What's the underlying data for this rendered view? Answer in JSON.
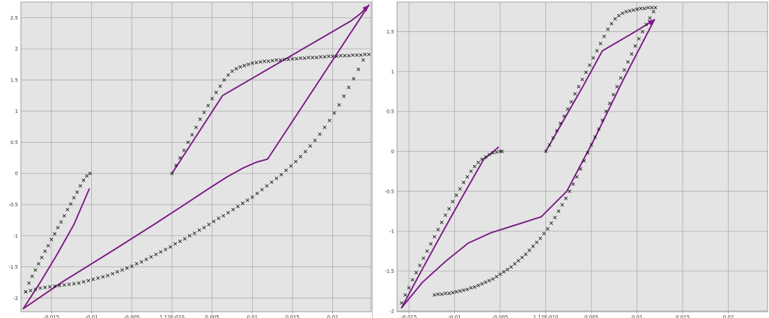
{
  "colors": {
    "plot_background": "#e4e4e4",
    "grid": "#a9a9a9",
    "frame": "#9a9a9a",
    "simulation_line": "#7b1a86",
    "measurement_marker": "#1a1a1a"
  },
  "chart_data": [
    {
      "type": "scatter",
      "title": "",
      "xlabel": "",
      "ylabel": "",
      "xlim": [
        -0.0188,
        0.0248
      ],
      "ylim": [
        -2.22,
        2.75
      ],
      "grid": true,
      "xticks": [
        -0.015,
        -0.01,
        -0.005,
        0,
        0.005,
        0.01,
        0.015,
        0.02
      ],
      "xtick_labels": [
        "-0.015",
        "-0.01",
        "-0.005",
        "1.12E-010",
        "0.005",
        "0.01",
        "0.015",
        "0.02"
      ],
      "yticks": [
        2.5,
        2,
        1.5,
        1,
        0.5,
        0,
        -0.5,
        -1,
        -1.5,
        -2
      ],
      "ytick_labels": [
        "2.5",
        "2",
        "1.5",
        "1",
        "0.5",
        "0",
        "-0.5",
        "-1",
        "-1.5",
        "-2"
      ],
      "series": [
        {
          "name": "",
          "style": "line",
          "arrowhead_at_end": true,
          "x": [
            0.0,
            0.0063,
            0.0103,
            0.0143,
            0.0183,
            0.0203,
            0.0223,
            0.0235,
            0.0245
          ],
          "y": [
            0.0,
            1.25,
            1.55,
            1.85,
            2.15,
            2.3,
            2.45,
            2.57,
            2.7
          ]
        },
        {
          "name": "",
          "style": "line",
          "arrowhead_at_end": false,
          "x": [
            0.0245,
            0.0119,
            0.0105,
            0.0089,
            0.0068,
            0.0045,
            0.0018,
            -0.002,
            -0.0075,
            -0.0135,
            -0.0185
          ],
          "y": [
            2.7,
            0.23,
            0.18,
            0.09,
            -0.06,
            -0.25,
            -0.48,
            -0.8,
            -1.25,
            -1.73,
            -2.17
          ]
        },
        {
          "name": "",
          "style": "line",
          "arrowhead_at_end": false,
          "x": [
            -0.0185,
            -0.0164,
            -0.0143,
            -0.0122,
            -0.0103
          ],
          "y": [
            -2.17,
            -1.75,
            -1.3,
            -0.82,
            -0.25
          ]
        },
        {
          "name": "",
          "style": "marker",
          "x": [
            0.0,
            0.0005,
            0.001,
            0.0015,
            0.002,
            0.0025,
            0.003,
            0.0035,
            0.004,
            0.0045,
            0.005,
            0.0055,
            0.006,
            0.0065,
            0.007,
            0.0075,
            0.008,
            0.0085,
            0.009,
            0.0095,
            0.01,
            0.0105,
            0.011,
            0.0115,
            0.012,
            0.0125,
            0.013,
            0.0135,
            0.014,
            0.0145,
            0.015,
            0.0155,
            0.016,
            0.0165,
            0.017,
            0.0175,
            0.018,
            0.0185,
            0.019,
            0.0195,
            0.02,
            0.0205,
            0.021,
            0.0215,
            0.022,
            0.0225,
            0.023,
            0.0235,
            0.024,
            0.0245
          ],
          "y": [
            0.0,
            0.13,
            0.25,
            0.37,
            0.5,
            0.62,
            0.74,
            0.87,
            0.98,
            1.09,
            1.2,
            1.3,
            1.4,
            1.5,
            1.58,
            1.64,
            1.68,
            1.71,
            1.73,
            1.75,
            1.77,
            1.78,
            1.79,
            1.8,
            1.8,
            1.81,
            1.82,
            1.82,
            1.83,
            1.83,
            1.84,
            1.84,
            1.85,
            1.85,
            1.86,
            1.86,
            1.86,
            1.87,
            1.87,
            1.88,
            1.88,
            1.88,
            1.89,
            1.89,
            1.89,
            1.9,
            1.9,
            1.9,
            1.91,
            1.91
          ]
        },
        {
          "name": "",
          "style": "marker",
          "x": [
            0.0238,
            0.0232,
            0.0226,
            0.022,
            0.0214,
            0.0208,
            0.0202,
            0.0196,
            0.019,
            0.0184,
            0.0178,
            0.0172,
            0.0166,
            0.016,
            0.0154,
            0.0148,
            0.0142,
            0.0136,
            0.013,
            0.0124,
            0.0118,
            0.0112,
            0.0106,
            0.01,
            0.0094,
            0.0088,
            0.0082,
            0.0076,
            0.007,
            0.0064,
            0.0058,
            0.0052,
            0.0046,
            0.004,
            0.0034,
            0.0028,
            0.0022,
            0.0016,
            0.001,
            0.0004,
            -0.0002,
            -0.0008,
            -0.0014,
            -0.002,
            -0.0026,
            -0.0032,
            -0.0038,
            -0.0044,
            -0.005,
            -0.0056,
            -0.0062,
            -0.0068,
            -0.0074,
            -0.008,
            -0.0086,
            -0.0092,
            -0.0098,
            -0.0104,
            -0.011,
            -0.0116,
            -0.0122,
            -0.0128,
            -0.0134,
            -0.014,
            -0.0146,
            -0.0152,
            -0.0158,
            -0.0164,
            -0.017,
            -0.0176,
            -0.0182
          ],
          "y": [
            1.82,
            1.67,
            1.52,
            1.38,
            1.24,
            1.1,
            0.97,
            0.85,
            0.74,
            0.63,
            0.53,
            0.44,
            0.35,
            0.27,
            0.19,
            0.12,
            0.05,
            -0.02,
            -0.08,
            -0.14,
            -0.2,
            -0.26,
            -0.32,
            -0.38,
            -0.43,
            -0.48,
            -0.53,
            -0.58,
            -0.63,
            -0.68,
            -0.72,
            -0.77,
            -0.82,
            -0.87,
            -0.91,
            -0.96,
            -1.0,
            -1.05,
            -1.09,
            -1.13,
            -1.18,
            -1.22,
            -1.26,
            -1.3,
            -1.34,
            -1.38,
            -1.42,
            -1.45,
            -1.49,
            -1.52,
            -1.55,
            -1.58,
            -1.61,
            -1.64,
            -1.66,
            -1.68,
            -1.7,
            -1.72,
            -1.74,
            -1.76,
            -1.77,
            -1.78,
            -1.79,
            -1.8,
            -1.81,
            -1.82,
            -1.83,
            -1.84,
            -1.86,
            -1.88,
            -1.9
          ]
        },
        {
          "name": "",
          "style": "marker",
          "x": [
            -0.0182,
            -0.0178,
            -0.0174,
            -0.017,
            -0.0166,
            -0.0162,
            -0.0158,
            -0.0154,
            -0.015,
            -0.0146,
            -0.0142,
            -0.0138,
            -0.0134,
            -0.013,
            -0.0126,
            -0.0122,
            -0.0118,
            -0.0114,
            -0.011,
            -0.0106,
            -0.0102
          ],
          "y": [
            -1.9,
            -1.76,
            -1.65,
            -1.55,
            -1.45,
            -1.35,
            -1.25,
            -1.16,
            -1.06,
            -0.97,
            -0.87,
            -0.78,
            -0.68,
            -0.58,
            -0.49,
            -0.39,
            -0.3,
            -0.2,
            -0.11,
            -0.04,
            0.0
          ]
        }
      ]
    },
    {
      "type": "scatter",
      "title": "",
      "xlabel": "",
      "ylabel": "",
      "xlim": [
        -0.0163,
        0.0243
      ],
      "ylim": [
        -2.01,
        1.87
      ],
      "grid": true,
      "xticks": [
        -0.015,
        -0.01,
        -0.005,
        0,
        0.005,
        0.01,
        0.015,
        0.02
      ],
      "xtick_labels": [
        "-0.015",
        "-0.01",
        "-0.005",
        "1.12E-010",
        "0.005",
        "0.01",
        "0.015",
        "0.02"
      ],
      "yticks": [
        1.5,
        1,
        0.5,
        0,
        -0.5,
        -1,
        -1.5,
        -2
      ],
      "ytick_labels": [
        "1.5",
        "1",
        "0.5",
        "0",
        "-0.5",
        "-1",
        "-1.5",
        "-2"
      ],
      "series": [
        {
          "name": "",
          "style": "line",
          "arrowhead_at_end": true,
          "x": [
            0.0,
            0.002,
            0.004,
            0.0062,
            0.008,
            0.0095,
            0.0108,
            0.0119
          ],
          "y": [
            0.0,
            0.4,
            0.8,
            1.26,
            1.38,
            1.48,
            1.57,
            1.65
          ]
        },
        {
          "name": "",
          "style": "line",
          "arrowhead_at_end": false,
          "x": [
            0.0119,
            0.0085,
            0.0053,
            0.0023,
            -0.0005,
            -0.0035,
            -0.006,
            -0.0085,
            -0.011,
            -0.0135,
            -0.0158
          ],
          "y": [
            1.65,
            0.9,
            0.15,
            -0.5,
            -0.82,
            -0.93,
            -1.02,
            -1.15,
            -1.38,
            -1.64,
            -1.96
          ]
        },
        {
          "name": "",
          "style": "line",
          "arrowhead_at_end": false,
          "x": [
            -0.0158,
            -0.0135,
            -0.0112,
            -0.009,
            -0.0068,
            -0.0052
          ],
          "y": [
            -1.96,
            -1.47,
            -0.99,
            -0.54,
            -0.1,
            0.05
          ]
        },
        {
          "name": "",
          "style": "marker",
          "x": [
            0.0,
            0.0004,
            0.0008,
            0.0012,
            0.0016,
            0.002,
            0.0024,
            0.0028,
            0.0032,
            0.0036,
            0.004,
            0.0044,
            0.0048,
            0.0052,
            0.0056,
            0.006,
            0.0064,
            0.0068,
            0.0072,
            0.0076,
            0.008,
            0.0084,
            0.0088,
            0.0092,
            0.0096,
            0.01,
            0.0104,
            0.0108,
            0.0112,
            0.0116,
            0.012
          ],
          "y": [
            0.0,
            0.08,
            0.17,
            0.26,
            0.35,
            0.44,
            0.53,
            0.62,
            0.72,
            0.81,
            0.9,
            0.99,
            1.08,
            1.17,
            1.26,
            1.35,
            1.44,
            1.53,
            1.6,
            1.66,
            1.7,
            1.73,
            1.75,
            1.76,
            1.77,
            1.78,
            1.79,
            1.79,
            1.8,
            1.8,
            1.8
          ]
        },
        {
          "name": "",
          "style": "marker",
          "x": [
            0.0118,
            0.0114,
            0.011,
            0.0106,
            0.0102,
            0.0098,
            0.0094,
            0.009,
            0.0086,
            0.0082,
            0.0078,
            0.0074,
            0.007,
            0.0066,
            0.0062,
            0.0058,
            0.0054,
            0.005,
            0.0046,
            0.0042,
            0.0038,
            0.0034,
            0.003,
            0.0026,
            0.0022,
            0.0018,
            0.0014,
            0.001,
            0.0006,
            0.0002,
            -0.0002,
            -0.0006,
            -0.001,
            -0.0014,
            -0.0018,
            -0.0022,
            -0.0026,
            -0.003,
            -0.0034,
            -0.0038,
            -0.0042,
            -0.0046,
            -0.005,
            -0.0054,
            -0.0058,
            -0.0062,
            -0.0066,
            -0.007,
            -0.0074,
            -0.0078,
            -0.0082,
            -0.0086,
            -0.009,
            -0.0094,
            -0.0098,
            -0.0102,
            -0.0106,
            -0.011,
            -0.0114,
            -0.0118,
            -0.0122
          ],
          "y": [
            1.75,
            1.67,
            1.59,
            1.5,
            1.41,
            1.32,
            1.22,
            1.12,
            1.02,
            0.92,
            0.81,
            0.71,
            0.6,
            0.5,
            0.39,
            0.28,
            0.18,
            0.08,
            -0.02,
            -0.12,
            -0.22,
            -0.32,
            -0.41,
            -0.5,
            -0.59,
            -0.67,
            -0.75,
            -0.83,
            -0.9,
            -0.97,
            -1.03,
            -1.09,
            -1.14,
            -1.19,
            -1.24,
            -1.29,
            -1.33,
            -1.37,
            -1.41,
            -1.45,
            -1.48,
            -1.51,
            -1.54,
            -1.57,
            -1.6,
            -1.62,
            -1.64,
            -1.66,
            -1.68,
            -1.7,
            -1.71,
            -1.73,
            -1.74,
            -1.75,
            -1.76,
            -1.77,
            -1.78,
            -1.78,
            -1.79,
            -1.79,
            -1.8
          ]
        },
        {
          "name": "",
          "style": "marker",
          "x": [
            -0.0158,
            -0.0154,
            -0.015,
            -0.0146,
            -0.0142,
            -0.0138,
            -0.0134,
            -0.013,
            -0.0126,
            -0.0122,
            -0.0118,
            -0.0114,
            -0.011,
            -0.0106,
            -0.0102,
            -0.0098,
            -0.0094,
            -0.009,
            -0.0086,
            -0.0082,
            -0.0078,
            -0.0074,
            -0.007,
            -0.0066,
            -0.0062,
            -0.0058,
            -0.0054,
            -0.005,
            -0.0048
          ],
          "y": [
            -1.9,
            -1.8,
            -1.71,
            -1.61,
            -1.52,
            -1.43,
            -1.34,
            -1.25,
            -1.16,
            -1.07,
            -0.98,
            -0.89,
            -0.8,
            -0.72,
            -0.63,
            -0.55,
            -0.47,
            -0.39,
            -0.32,
            -0.25,
            -0.19,
            -0.14,
            -0.1,
            -0.07,
            -0.04,
            -0.02,
            -0.01,
            0.0,
            0.0
          ]
        }
      ]
    }
  ]
}
